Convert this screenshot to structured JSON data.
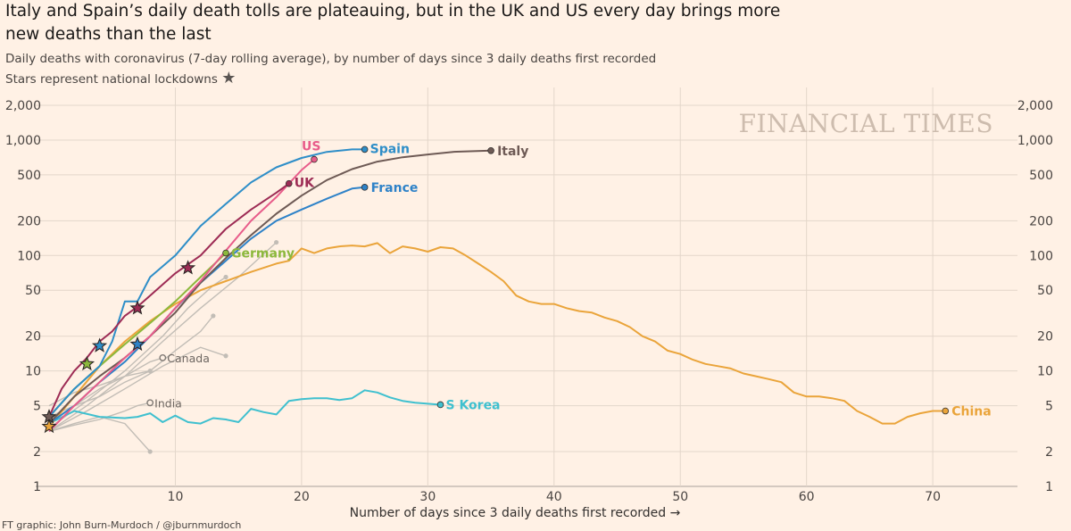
{
  "title": "Italy and Spain’s daily death tolls are plateauing, but in the UK and US every day brings more new deaths than the last",
  "subtitle": "Daily deaths with coronavirus (7-day rolling average), by number of days since 3 daily deaths first recorded",
  "stars_note": "Stars represent national lockdowns",
  "star_symbol": "★",
  "watermark": "FINANCIAL TIMES",
  "credit": "FT graphic: John Burn-Murdoch / @jburnmurdoch",
  "chart_data": {
    "type": "line",
    "scale": "log",
    "xlabel": "Number of days since 3 daily deaths first recorded",
    "xlabel_arrow": "→",
    "xlim": [
      0,
      76
    ],
    "ylim": [
      1,
      2000
    ],
    "x_ticks": [
      10,
      20,
      30,
      40,
      50,
      60,
      70
    ],
    "y_ticks": [
      1,
      2,
      5,
      10,
      20,
      50,
      100,
      200,
      500,
      1000,
      2000
    ],
    "y_tick_labels": [
      "1",
      "2",
      "5",
      "10",
      "20",
      "50",
      "100",
      "200",
      "500",
      "1,000",
      "2,000"
    ],
    "grid": true,
    "colors": {
      "italy": "#6e5a55",
      "spain": "#2e8ec8",
      "us": "#e85c8a",
      "uk": "#9d2b54",
      "france": "#2e82c8",
      "germany": "#8cb83c",
      "china": "#eaa43a",
      "skorea": "#3fc0cf",
      "grey": "#c2bdb6"
    },
    "series": [
      {
        "name": "Italy",
        "key": "italy",
        "x": [
          0,
          2,
          4,
          6,
          8,
          10,
          12,
          14,
          16,
          18,
          20,
          22,
          24,
          26,
          28,
          30,
          32,
          35
        ],
        "y": [
          3.5,
          6,
          9,
          13,
          20,
          32,
          58,
          95,
          150,
          230,
          330,
          450,
          560,
          650,
          710,
          750,
          790,
          810
        ],
        "end_label": "Italy"
      },
      {
        "name": "Spain",
        "key": "spain",
        "x": [
          0,
          2,
          4,
          5,
          6,
          7,
          8,
          10,
          12,
          14,
          16,
          18,
          20,
          22,
          24,
          25
        ],
        "y": [
          4,
          7,
          11,
          18,
          40,
          40,
          65,
          100,
          180,
          280,
          430,
          580,
          700,
          790,
          830,
          830
        ],
        "end_label": "Spain"
      },
      {
        "name": "US",
        "key": "us",
        "x": [
          0,
          2,
          4,
          6,
          8,
          10,
          12,
          14,
          16,
          18,
          19,
          20,
          21
        ],
        "y": [
          3,
          5,
          8,
          13,
          20,
          35,
          60,
          110,
          200,
          320,
          420,
          550,
          680
        ],
        "end_label": "US"
      },
      {
        "name": "UK",
        "key": "uk",
        "x": [
          0,
          1,
          2,
          3,
          4,
          5,
          6,
          7,
          8,
          10,
          12,
          14,
          16,
          18,
          19
        ],
        "y": [
          4,
          7,
          10,
          13,
          18,
          22,
          30,
          36,
          45,
          70,
          100,
          170,
          250,
          350,
          420
        ],
        "end_label": "UK"
      },
      {
        "name": "France",
        "key": "france",
        "x": [
          0,
          2,
          4,
          6,
          8,
          10,
          12,
          14,
          16,
          18,
          20,
          22,
          24,
          25
        ],
        "y": [
          3.5,
          5,
          8,
          12,
          20,
          35,
          58,
          90,
          140,
          200,
          250,
          310,
          380,
          390
        ],
        "end_label": "France"
      },
      {
        "name": "Germany",
        "key": "germany",
        "x": [
          0,
          2,
          4,
          6,
          8,
          10,
          12,
          14
        ],
        "y": [
          4,
          7,
          11,
          17,
          26,
          40,
          65,
          105
        ],
        "end_label": "Germany"
      },
      {
        "name": "China",
        "key": "china",
        "x": [
          0,
          2,
          4,
          6,
          8,
          10,
          12,
          14,
          16,
          18,
          19,
          20,
          21,
          22,
          23,
          24,
          25,
          26,
          27,
          28,
          29,
          30,
          31,
          32,
          33,
          34,
          35,
          36,
          37,
          38,
          39,
          40,
          41,
          42,
          43,
          44,
          45,
          46,
          47,
          48,
          49,
          50,
          51,
          52,
          53,
          54,
          55,
          56,
          57,
          58,
          59,
          60,
          61,
          62,
          63,
          64,
          65,
          66,
          67,
          68,
          69,
          70,
          71
        ],
        "y": [
          3.3,
          6,
          11,
          18,
          27,
          38,
          50,
          60,
          72,
          85,
          90,
          115,
          105,
          115,
          120,
          122,
          120,
          128,
          105,
          120,
          115,
          108,
          118,
          115,
          100,
          85,
          72,
          60,
          45,
          40,
          38,
          38,
          35,
          33,
          32,
          29,
          27,
          24,
          20,
          18,
          15,
          14,
          12.5,
          11.5,
          11,
          10.5,
          9.5,
          9,
          8.5,
          8,
          6.5,
          6,
          6,
          5.8,
          5.5,
          4.5,
          4,
          3.5,
          3.5,
          4,
          4.3,
          4.5,
          4.5
        ],
        "end_label": "China"
      },
      {
        "name": "S Korea",
        "key": "skorea",
        "x": [
          0,
          2,
          4,
          6,
          7,
          8,
          9,
          10,
          11,
          12,
          13,
          14,
          15,
          16,
          17,
          18,
          19,
          20,
          21,
          22,
          23,
          24,
          25,
          26,
          27,
          28,
          29,
          30,
          31
        ],
        "y": [
          3.5,
          4.5,
          4,
          3.9,
          4,
          4.3,
          3.6,
          4.1,
          3.6,
          3.5,
          3.9,
          3.8,
          3.6,
          4.7,
          4.4,
          4.2,
          5.5,
          5.7,
          5.8,
          5.8,
          5.6,
          5.8,
          6.8,
          6.5,
          5.9,
          5.5,
          5.3,
          5.2,
          5.1
        ],
        "end_label": "S Korea"
      }
    ],
    "background_series": [
      {
        "label": "Canada",
        "x": [
          0,
          2,
          4,
          6,
          8,
          9
        ],
        "y": [
          3,
          5,
          7,
          9,
          12,
          13
        ]
      },
      {
        "label": "India",
        "x": [
          0,
          2,
          4,
          6,
          7,
          8
        ],
        "y": [
          3,
          3.4,
          3.8,
          4.5,
          5,
          5.3
        ]
      },
      {
        "label": "",
        "x": [
          0,
          3,
          6,
          9,
          12,
          15,
          18
        ],
        "y": [
          3,
          5,
          9,
          18,
          35,
          65,
          130
        ]
      },
      {
        "label": "",
        "x": [
          0,
          3,
          6,
          9,
          11,
          13,
          14
        ],
        "y": [
          3.2,
          5.5,
          10,
          20,
          35,
          55,
          65
        ]
      },
      {
        "label": "",
        "x": [
          0,
          3,
          6,
          9,
          12,
          14
        ],
        "y": [
          3,
          4.5,
          7,
          11,
          16,
          13.5
        ]
      },
      {
        "label": "",
        "x": [
          0,
          2,
          4,
          6,
          8
        ],
        "y": [
          3,
          3.5,
          4,
          3.5,
          2
        ]
      },
      {
        "label": "",
        "x": [
          0,
          2,
          4,
          6,
          8,
          10,
          12,
          13
        ],
        "y": [
          4,
          5,
          6,
          8,
          10,
          15,
          22,
          30
        ]
      },
      {
        "label": "",
        "x": [
          0,
          2,
          4,
          6,
          8
        ],
        "y": [
          5,
          6.5,
          7.5,
          9,
          10
        ]
      }
    ],
    "lockdown_stars": [
      {
        "x": 0,
        "y": 3.3,
        "key": "china"
      },
      {
        "x": 0,
        "y": 4,
        "key": "italy"
      },
      {
        "x": 3,
        "y": 11.5,
        "key": "germany"
      },
      {
        "x": 4,
        "y": 16.5,
        "key": "spain"
      },
      {
        "x": 7,
        "y": 17,
        "key": "france"
      },
      {
        "x": 7,
        "y": 35,
        "key": "uk"
      },
      {
        "x": 11,
        "y": 78,
        "key": "uk"
      }
    ],
    "grey_labels": [
      "Canada",
      "India"
    ]
  }
}
